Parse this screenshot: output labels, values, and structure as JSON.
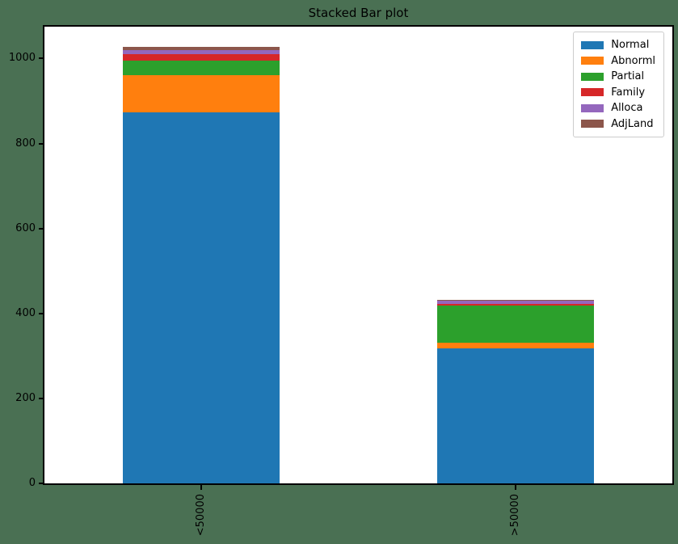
{
  "figure": {
    "background_color": "#4a7053",
    "axes_facecolor": "#ffffff",
    "spine_color": "#000000",
    "legend_border_color": "#cccccc"
  },
  "chart_data": {
    "type": "bar",
    "stacked": true,
    "title": "Stacked Bar plot",
    "xlabel": "",
    "ylabel": "",
    "categories": [
      "<50000",
      ">50000"
    ],
    "series": [
      {
        "name": "Normal",
        "color": "#1f77b4",
        "values": [
          873,
          317
        ]
      },
      {
        "name": "Abnorml",
        "color": "#ff7f0e",
        "values": [
          88,
          15
        ]
      },
      {
        "name": "Partial",
        "color": "#2ca02c",
        "values": [
          34,
          86
        ]
      },
      {
        "name": "Family",
        "color": "#d62728",
        "values": [
          15,
          4
        ]
      },
      {
        "name": "Alloca",
        "color": "#9467bd",
        "values": [
          9,
          8
        ]
      },
      {
        "name": "AdjLand",
        "color": "#8c564b",
        "values": [
          8,
          2
        ]
      }
    ],
    "totals": [
      1027,
      432
    ],
    "ylim": [
      0,
      1075
    ],
    "yticks": [
      0,
      200,
      400,
      600,
      800,
      1000
    ],
    "xtick_rotation": 90,
    "grid": false,
    "legend_position": "upper right",
    "bar_centers_frac": [
      0.25,
      0.75
    ],
    "bar_width_frac": 0.25
  }
}
